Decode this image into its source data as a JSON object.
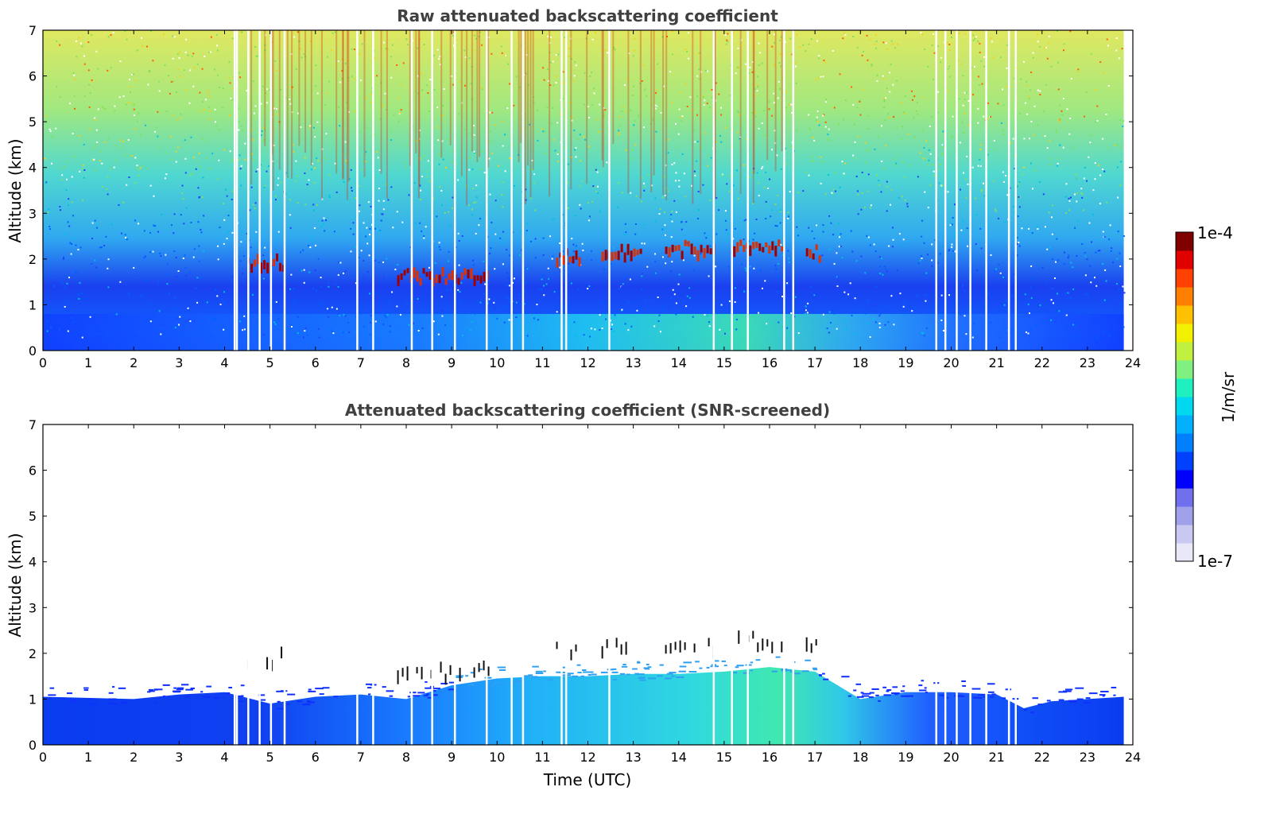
{
  "chart_data": [
    {
      "type": "heatmap",
      "title": "Raw attenuated backscattering coefficient",
      "xlabel": "",
      "ylabel": "Altitude (km)",
      "xlim": [
        0,
        24
      ],
      "ylim": [
        0,
        7
      ],
      "x_ticks": [
        "0",
        "1",
        "2",
        "3",
        "4",
        "5",
        "6",
        "7",
        "8",
        "9",
        "10",
        "11",
        "12",
        "13",
        "14",
        "15",
        "16",
        "17",
        "18",
        "19",
        "20",
        "21",
        "22",
        "23",
        "24"
      ],
      "y_ticks": [
        "0",
        "1",
        "2",
        "3",
        "4",
        "5",
        "6",
        "7"
      ],
      "data_end_hour": 23.8,
      "data_gaps_hours": [
        4.2,
        4.25,
        4.5,
        4.75,
        5.0,
        5.3,
        6.9,
        7.25,
        8.1,
        8.55,
        9.05,
        9.75,
        10.3,
        10.55,
        11.4,
        11.5,
        12.45,
        14.75,
        15.15,
        15.5,
        16.3,
        16.5,
        19.65,
        19.85,
        20.1,
        20.4,
        20.75,
        21.25,
        21.4
      ],
      "cloud_layers": [
        {
          "start": 4.5,
          "end": 5.3,
          "altitude_km": 2.0
        },
        {
          "start": 7.8,
          "end": 9.8,
          "altitude_km": 1.7
        },
        {
          "start": 11.3,
          "end": 11.8,
          "altitude_km": 2.15
        },
        {
          "start": 12.3,
          "end": 13.2,
          "altitude_km": 2.25
        },
        {
          "start": 13.7,
          "end": 14.8,
          "altitude_km": 2.3
        },
        {
          "start": 15.2,
          "end": 16.3,
          "altitude_km": 2.35
        },
        {
          "start": 16.8,
          "end": 17.1,
          "altitude_km": 2.2
        }
      ]
    },
    {
      "type": "heatmap",
      "title": "Attenuated backscattering coefficient (SNR-screened)",
      "xlabel": "Time (UTC)",
      "ylabel": "Altitude (km)",
      "xlim": [
        0,
        24
      ],
      "ylim": [
        0,
        7
      ],
      "x_ticks": [
        "0",
        "1",
        "2",
        "3",
        "4",
        "5",
        "6",
        "7",
        "8",
        "9",
        "10",
        "11",
        "12",
        "13",
        "14",
        "15",
        "16",
        "17",
        "18",
        "19",
        "20",
        "21",
        "22",
        "23",
        "24"
      ],
      "y_ticks": [
        "0",
        "1",
        "2",
        "3",
        "4",
        "5",
        "6",
        "7"
      ],
      "data_end_hour": 23.8,
      "boundary_layer_top_km": [
        {
          "t": 0,
          "h": 1.05
        },
        {
          "t": 2,
          "h": 1.0
        },
        {
          "t": 3,
          "h": 1.1
        },
        {
          "t": 4,
          "h": 1.15
        },
        {
          "t": 5,
          "h": 0.9
        },
        {
          "t": 6,
          "h": 1.05
        },
        {
          "t": 7,
          "h": 1.1
        },
        {
          "t": 8,
          "h": 1.0
        },
        {
          "t": 9,
          "h": 1.3
        },
        {
          "t": 10,
          "h": 1.45
        },
        {
          "t": 11,
          "h": 1.5
        },
        {
          "t": 12,
          "h": 1.5
        },
        {
          "t": 13,
          "h": 1.55
        },
        {
          "t": 14,
          "h": 1.55
        },
        {
          "t": 15,
          "h": 1.6
        },
        {
          "t": 16,
          "h": 1.7
        },
        {
          "t": 17,
          "h": 1.6
        },
        {
          "t": 18,
          "h": 1.0
        },
        {
          "t": 19,
          "h": 1.15
        },
        {
          "t": 20,
          "h": 1.15
        },
        {
          "t": 21,
          "h": 1.1
        },
        {
          "t": 21.6,
          "h": 0.8
        },
        {
          "t": 22.2,
          "h": 0.95
        },
        {
          "t": 23.8,
          "h": 1.05
        }
      ]
    }
  ],
  "colorbar": {
    "label": "1/m/sr",
    "max_label": "1e-4",
    "min_label": "1e-7",
    "colors": [
      "#e8e8f8",
      "#c8c8f0",
      "#a0a0ea",
      "#7070ee",
      "#0000ff",
      "#0040ff",
      "#0080ff",
      "#00b0ff",
      "#00d8f0",
      "#20f0c0",
      "#80f080",
      "#c0f040",
      "#f0f000",
      "#ffc000",
      "#ff8000",
      "#ff4000",
      "#e00000",
      "#800000"
    ]
  }
}
